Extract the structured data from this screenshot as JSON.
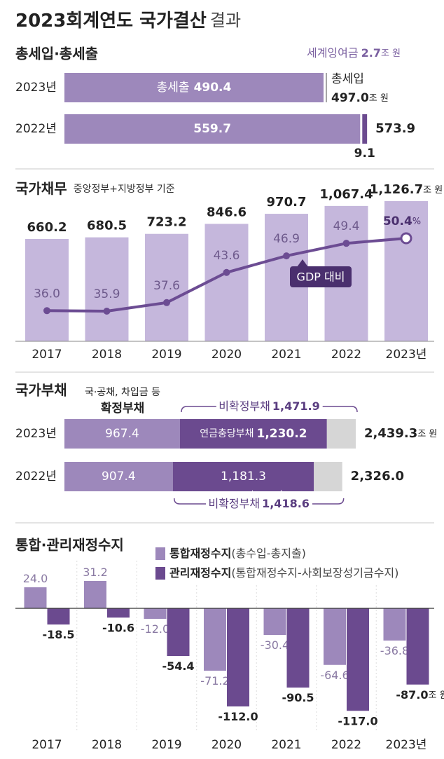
{
  "title": {
    "main": "2023회계연도 국가결산",
    "suffix": "결과"
  },
  "chart_data": [
    {
      "type": "bar",
      "orientation": "horizontal",
      "stacked": true,
      "title": "총세입·총세출",
      "categories": [
        "2023년",
        "2022년"
      ],
      "series": [
        {
          "name": "총세출",
          "color": "#9d88bb",
          "values": [
            490.4,
            559.7
          ]
        },
        {
          "name": "세계잉여금",
          "colors": [
            "#a6a6a6",
            "#6b4a8f"
          ],
          "values": [
            2.7,
            9.1
          ]
        }
      ],
      "total_name": "총세입",
      "totals": [
        497.0,
        573.9
      ],
      "total_labels": [
        "497.0",
        "573.9"
      ],
      "unit": "조 원"
    },
    {
      "type": "bar-line",
      "title": "국가채무",
      "subtitle": "중앙정부+지방정부 기준",
      "categories": [
        "2017",
        "2018",
        "2019",
        "2020",
        "2021",
        "2022",
        "2023년"
      ],
      "series": [
        {
          "color": "#c5b7dc",
          "values": [
            660.2,
            680.5,
            723.2,
            846.6,
            970.7,
            1067.4,
            1126.7
          ],
          "value_labels": [
            "660.2",
            "680.5",
            "723.2",
            "846.6",
            "970.7",
            "1,067.4",
            "1,126.7"
          ],
          "unit": "조 원"
        },
        {
          "name": "GDP 대비",
          "color": "#6c4c93",
          "axis": "y2",
          "values": [
            36.0,
            35.9,
            37.6,
            43.6,
            46.9,
            49.4,
            50.4
          ],
          "value_labels": [
            "36.0",
            "35.9",
            "37.6",
            "43.6",
            "46.9",
            "49.4",
            "50.4"
          ],
          "unit": "%"
        }
      ]
    },
    {
      "type": "bar",
      "orientation": "horizontal",
      "stacked": true,
      "title": "국가부채",
      "categories": [
        "2023년",
        "2022년"
      ],
      "series": [
        {
          "name": "확정부채",
          "note": "국·공채, 차입금 등",
          "color": "#9d88bb",
          "values": [
            967.4,
            907.4
          ]
        },
        {
          "name": "연금충당부채",
          "color": "#6b4a8f",
          "values": [
            1230.2,
            1181.3
          ],
          "value_labels": [
            "1,230.2",
            "1,181.3"
          ]
        },
        {
          "color": "#d6d6d6",
          "values": [
            241.7,
            237.3
          ]
        }
      ],
      "group_name": "비확정부채",
      "group_totals": [
        1471.9,
        1418.6
      ],
      "group_labels": [
        "1,471.9",
        "1,418.6"
      ],
      "totals": [
        2439.3,
        2326.0
      ],
      "total_labels": [
        "2,439.3",
        "2,326.0"
      ],
      "unit": "조 원"
    },
    {
      "type": "bar",
      "title": "통합·관리재정수지",
      "categories": [
        "2017",
        "2018",
        "2019",
        "2020",
        "2021",
        "2022",
        "2023년"
      ],
      "series": [
        {
          "name": "통합재정수지",
          "note": "(총수입-총지출)",
          "color": "#9d88bb",
          "values": [
            24.0,
            31.2,
            -12.0,
            -71.2,
            -30.4,
            -64.6,
            -36.8
          ],
          "value_labels": [
            "24.0",
            "31.2",
            "-12.0",
            "-71.2",
            "-30.4",
            "-64.6",
            "-36.8"
          ]
        },
        {
          "name": "관리재정수지",
          "note": "(통합재정수지-사회보장성기금수지)",
          "color": "#6b4a8f",
          "values": [
            -18.5,
            -10.6,
            -54.4,
            -112.0,
            -90.5,
            -117.0,
            -87.0
          ],
          "value_labels": [
            "-18.5",
            "-10.6",
            "-54.4",
            "-112.0",
            "-90.5",
            "-117.0",
            "-87.0"
          ],
          "unit": "조 원"
        }
      ]
    }
  ]
}
